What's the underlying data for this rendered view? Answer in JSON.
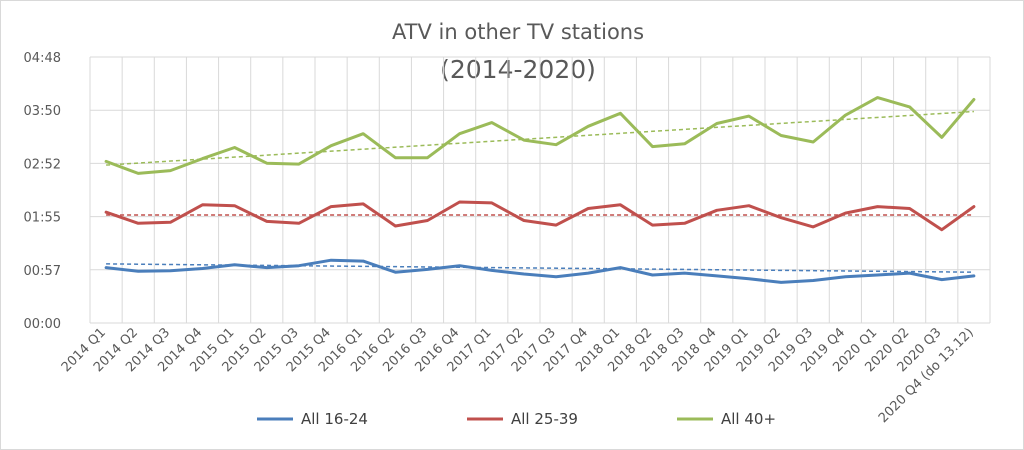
{
  "chart_data": {
    "type": "line",
    "title": "ATV in other TV stations",
    "subtitle": "(2014-2020)",
    "y_ticks": [
      "00:00",
      "00:57",
      "01:55",
      "02:52",
      "03:50",
      "04:48"
    ],
    "y_tick_minutes": [
      0,
      57.6,
      115.2,
      172.8,
      230.4,
      288
    ],
    "ylim": [
      0,
      288
    ],
    "x_ticks": [
      "2014 Q1",
      "2014 Q2",
      "2014 Q3",
      "2014 Q4",
      "2015 Q1",
      "2015 Q2",
      "2015 Q3",
      "2015 Q4",
      "2016 Q1",
      "2016 Q2",
      "2016 Q3",
      "2016 Q4",
      "2017 Q1",
      "2017 Q2",
      "2017 Q3",
      "2017 Q4",
      "2018 Q1",
      "2018 Q2",
      "2018 Q3",
      "2018 Q4",
      "2019 Q1",
      "2019 Q2",
      "2019 Q3",
      "2019 Q4",
      "2020 Q1",
      "2020 Q2",
      "2020 Q3",
      "2020 Q4 (do 13.12)"
    ],
    "grid": true,
    "legend": "bottom",
    "series": [
      {
        "name": "All 16-24",
        "color": "#4a7ebb",
        "values": [
          60,
          56,
          56.5,
          59,
          63,
          60,
          62,
          68,
          67,
          55,
          58,
          62,
          57,
          53,
          50,
          54,
          60,
          52,
          54,
          51,
          48,
          44,
          46,
          50,
          52,
          54,
          47,
          51
        ],
        "trend": [
          64,
          55
        ]
      },
      {
        "name": "All 25-39",
        "color": "#c0504d",
        "values": [
          120,
          108,
          109,
          128,
          127,
          110,
          108,
          126,
          129,
          105,
          111,
          131,
          130,
          111,
          106,
          124,
          128,
          106,
          108,
          122,
          127,
          114,
          104,
          119,
          126,
          124,
          101,
          126
        ],
        "trend": [
          117,
          117
        ]
      },
      {
        "name": "All 40+",
        "color": "#9bbb59",
        "values": [
          175,
          162,
          165,
          178,
          190,
          173,
          172,
          192,
          205,
          179,
          179,
          205,
          217,
          198,
          193,
          213,
          227,
          191,
          194,
          216,
          224,
          203,
          196,
          225,
          244,
          234,
          201,
          242
        ],
        "trend": [
          171,
          229
        ]
      }
    ]
  }
}
